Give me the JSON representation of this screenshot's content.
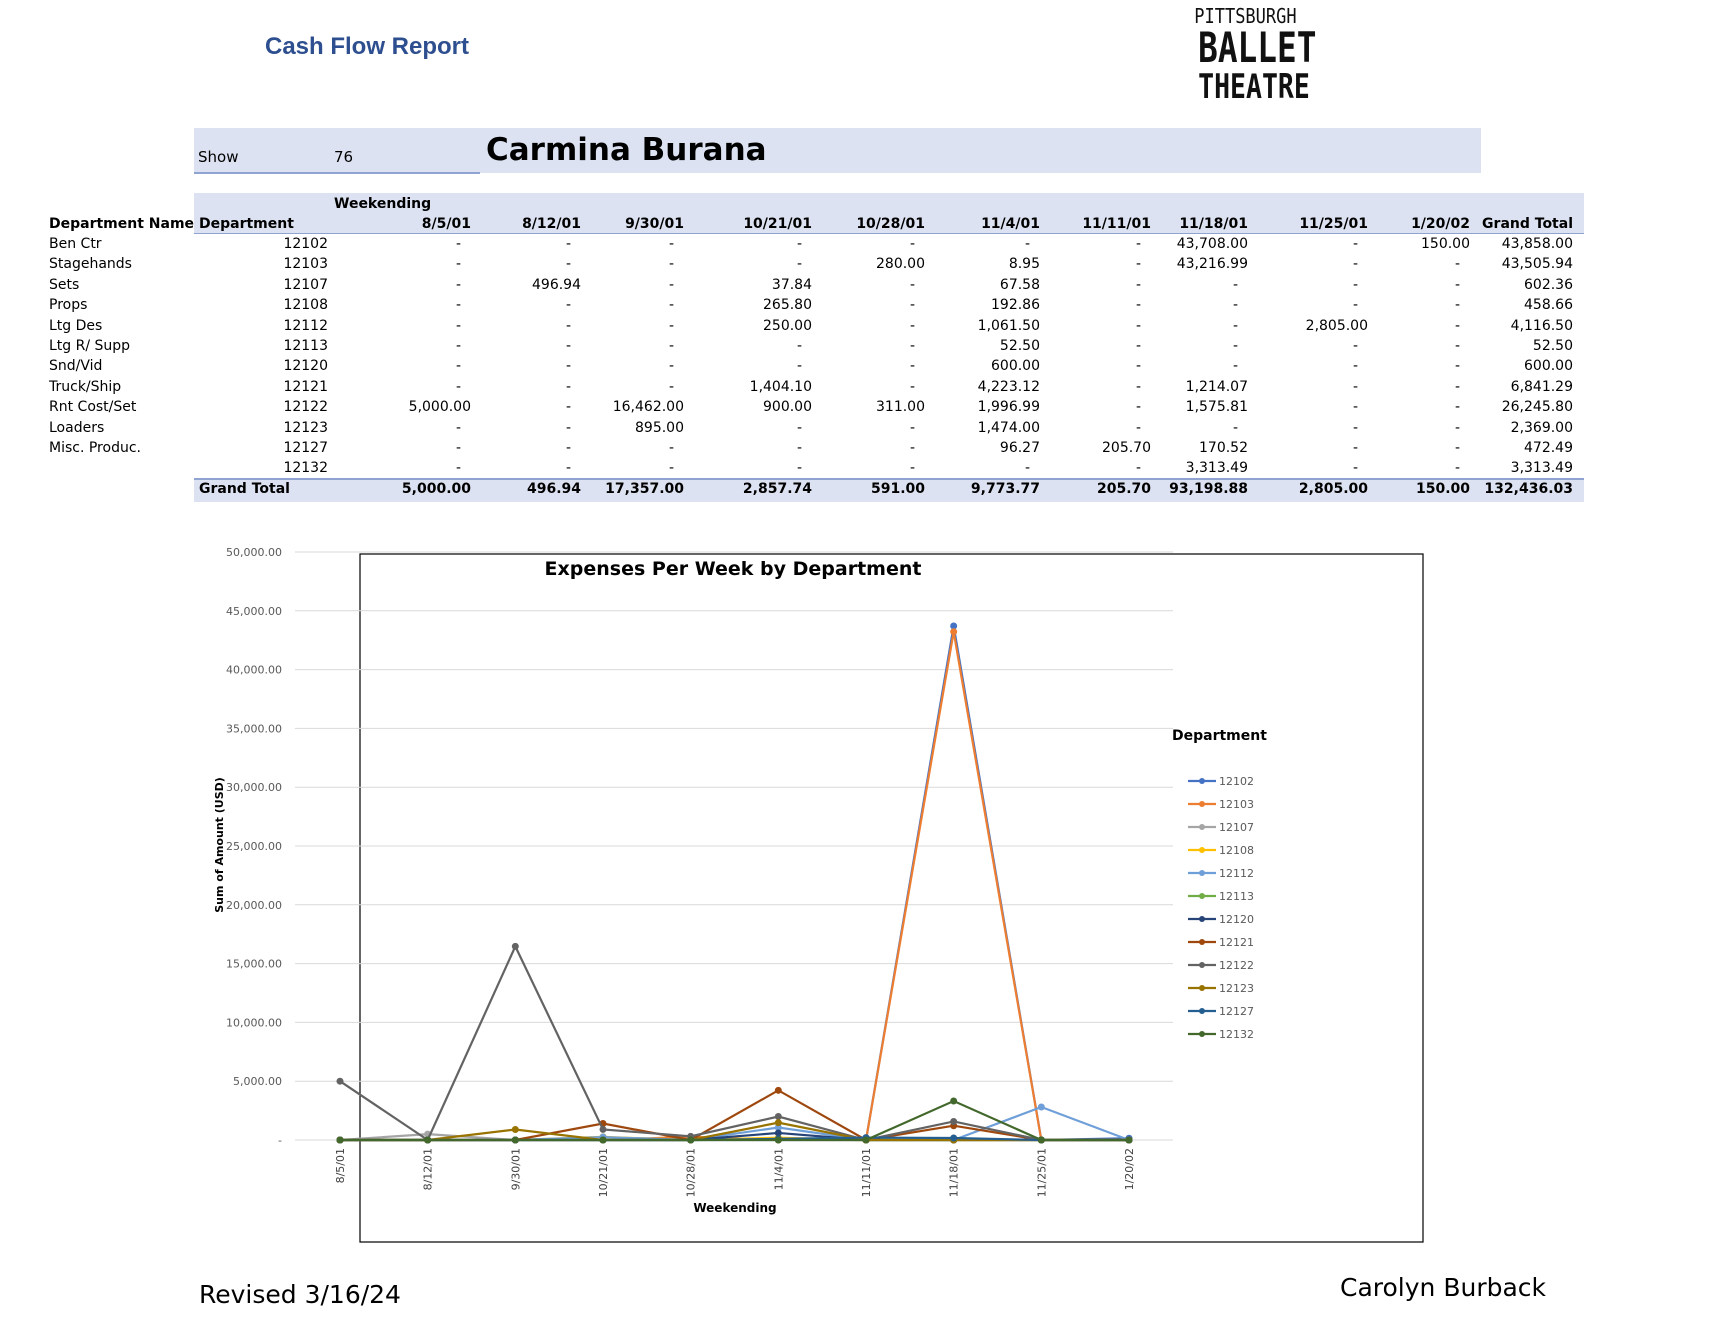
{
  "report_title": "Cash Flow Report",
  "logo": {
    "line1": "PITTSBURGH",
    "line2": "BALLET",
    "line3": "THEATRE"
  },
  "show": {
    "label": "Show",
    "number": "76",
    "name": "Carmina Burana"
  },
  "table": {
    "weekending_label": "Weekending",
    "col_dept_name": "Department Name",
    "col_dept": "Department",
    "dates": [
      "8/5/01",
      "8/12/01",
      "9/30/01",
      "10/21/01",
      "10/28/01",
      "11/4/01",
      "11/11/01",
      "11/18/01",
      "11/25/01",
      "1/20/02"
    ],
    "col_grand_total": "Grand Total",
    "rows": [
      {
        "name": "Ben Ctr",
        "dept": "12102",
        "vals": [
          "-",
          "-",
          "-",
          "-",
          "-",
          "-",
          "-",
          "43,708.00",
          "-",
          "150.00"
        ],
        "total": "43,858.00"
      },
      {
        "name": "Stagehands",
        "dept": "12103",
        "vals": [
          "-",
          "-",
          "-",
          "-",
          "280.00",
          "8.95",
          "-",
          "43,216.99",
          "-",
          "-"
        ],
        "total": "43,505.94"
      },
      {
        "name": "Sets",
        "dept": "12107",
        "vals": [
          "-",
          "496.94",
          "-",
          "37.84",
          "-",
          "67.58",
          "-",
          "-",
          "-",
          "-"
        ],
        "total": "602.36"
      },
      {
        "name": "Props",
        "dept": "12108",
        "vals": [
          "-",
          "-",
          "-",
          "265.80",
          "-",
          "192.86",
          "-",
          "-",
          "-",
          "-"
        ],
        "total": "458.66"
      },
      {
        "name": "Ltg Des",
        "dept": "12112",
        "vals": [
          "-",
          "-",
          "-",
          "250.00",
          "-",
          "1,061.50",
          "-",
          "-",
          "2,805.00",
          "-"
        ],
        "total": "4,116.50"
      },
      {
        "name": "Ltg R/ Supp",
        "dept": "12113",
        "vals": [
          "-",
          "-",
          "-",
          "-",
          "-",
          "52.50",
          "-",
          "-",
          "-",
          "-"
        ],
        "total": "52.50"
      },
      {
        "name": "Snd/Vid",
        "dept": "12120",
        "vals": [
          "-",
          "-",
          "-",
          "-",
          "-",
          "600.00",
          "-",
          "-",
          "-",
          "-"
        ],
        "total": "600.00"
      },
      {
        "name": "Truck/Ship",
        "dept": "12121",
        "vals": [
          "-",
          "-",
          "-",
          "1,404.10",
          "-",
          "4,223.12",
          "-",
          "1,214.07",
          "-",
          "-"
        ],
        "total": "6,841.29"
      },
      {
        "name": "Rnt Cost/Set",
        "dept": "12122",
        "vals": [
          "5,000.00",
          "-",
          "16,462.00",
          "900.00",
          "311.00",
          "1,996.99",
          "-",
          "1,575.81",
          "-",
          "-"
        ],
        "total": "26,245.80"
      },
      {
        "name": "Loaders",
        "dept": "12123",
        "vals": [
          "-",
          "-",
          "895.00",
          "-",
          "-",
          "1,474.00",
          "-",
          "-",
          "-",
          "-"
        ],
        "total": "2,369.00"
      },
      {
        "name": "Misc. Produc.",
        "dept": "12127",
        "vals": [
          "-",
          "-",
          "-",
          "-",
          "-",
          "96.27",
          "205.70",
          "170.52",
          "-",
          "-"
        ],
        "total": "472.49"
      },
      {
        "name": "",
        "dept": "12132",
        "vals": [
          "-",
          "-",
          "-",
          "-",
          "-",
          "-",
          "-",
          "3,313.49",
          "-",
          "-"
        ],
        "total": "3,313.49"
      }
    ],
    "grand_total_label": "Grand Total",
    "grand_total_vals": [
      "5,000.00",
      "496.94",
      "17,357.00",
      "2,857.74",
      "591.00",
      "9,773.77",
      "205.70",
      "93,198.88",
      "2,805.00",
      "150.00"
    ],
    "grand_total_total": "132,436.03"
  },
  "chart_data": {
    "type": "line",
    "title": "Expenses Per Week by Department",
    "xlabel": "Weekending",
    "ylabel": "Sum of Amount (USD)",
    "legend_title": "Department",
    "legend_position": "right",
    "grid": true,
    "ylim": [
      0,
      50000
    ],
    "yticks": [
      "-",
      "5,000.00",
      "10,000.00",
      "15,000.00",
      "20,000.00",
      "25,000.00",
      "30,000.00",
      "35,000.00",
      "40,000.00",
      "45,000.00",
      "50,000.00"
    ],
    "categories": [
      "8/5/01",
      "8/12/01",
      "9/30/01",
      "10/21/01",
      "10/28/01",
      "11/4/01",
      "11/11/01",
      "11/18/01",
      "11/25/01",
      "1/20/02"
    ],
    "series": [
      {
        "name": "12102",
        "color": "#4472c4",
        "values": [
          0,
          0,
          0,
          0,
          0,
          0,
          0,
          43708,
          0,
          150
        ]
      },
      {
        "name": "12103",
        "color": "#ed7d31",
        "values": [
          0,
          0,
          0,
          0,
          280,
          8.95,
          0,
          43216.99,
          0,
          0
        ]
      },
      {
        "name": "12107",
        "color": "#a5a5a5",
        "values": [
          0,
          496.94,
          0,
          37.84,
          0,
          67.58,
          0,
          0,
          0,
          0
        ]
      },
      {
        "name": "12108",
        "color": "#ffc000",
        "values": [
          0,
          0,
          0,
          265.8,
          0,
          192.86,
          0,
          0,
          0,
          0
        ]
      },
      {
        "name": "12112",
        "color": "#6f9fd8",
        "values": [
          0,
          0,
          0,
          250,
          0,
          1061.5,
          0,
          0,
          2805,
          0
        ]
      },
      {
        "name": "12113",
        "color": "#70ad47",
        "values": [
          0,
          0,
          0,
          0,
          0,
          52.5,
          0,
          0,
          0,
          0
        ]
      },
      {
        "name": "12120",
        "color": "#264478",
        "values": [
          0,
          0,
          0,
          0,
          0,
          600,
          0,
          0,
          0,
          0
        ]
      },
      {
        "name": "12121",
        "color": "#9e480e",
        "values": [
          0,
          0,
          0,
          1404.1,
          0,
          4223.12,
          0,
          1214.07,
          0,
          0
        ]
      },
      {
        "name": "12122",
        "color": "#636363",
        "values": [
          5000,
          0,
          16462,
          900,
          311,
          1996.99,
          0,
          1575.81,
          0,
          0
        ]
      },
      {
        "name": "12123",
        "color": "#997300",
        "values": [
          0,
          0,
          895,
          0,
          0,
          1474,
          0,
          0,
          0,
          0
        ]
      },
      {
        "name": "12127",
        "color": "#255e91",
        "values": [
          0,
          0,
          0,
          0,
          0,
          96.27,
          205.7,
          170.52,
          0,
          0
        ]
      },
      {
        "name": "12132",
        "color": "#43682b",
        "values": [
          0,
          0,
          0,
          0,
          0,
          0,
          0,
          3313.49,
          0,
          0
        ]
      }
    ]
  },
  "footer": {
    "revised": "Revised 3/16/24",
    "author": "Carolyn Burback"
  }
}
